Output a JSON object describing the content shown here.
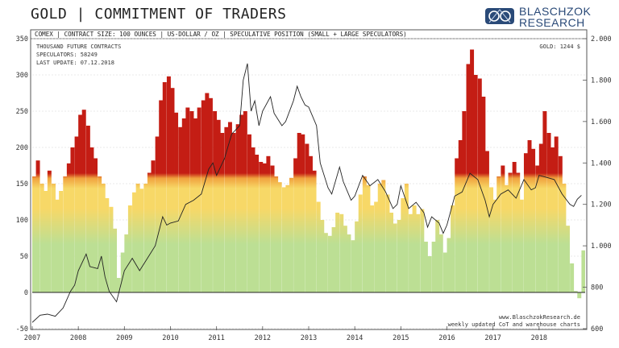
{
  "header": {
    "title": "GOLD | COMMITMENT OF TRADERS",
    "logo_line1": "BLASCHZOK",
    "logo_line2": "RESEARCH",
    "logo_icon": "lion-crest-icon"
  },
  "chart_data": {
    "type": "bar",
    "subtitle": "COMEX | CONTRACT SIZE: 100 OUNCES | US-DOLLAR / OZ | SPECULATIVE POSITION (SMALL + LARGE SPECULATORS)",
    "info_lines": [
      "THOUSAND  FUTURE  CONTRACTS",
      "SPECULATORS:  58249",
      "LAST UPDATE: 07.12.2018"
    ],
    "gold_label": "GOLD: 1244 $",
    "footer_lines": [
      "www.BlaschzokResearch.de",
      "weekly updated CoT and warehouse charts"
    ],
    "x_ticks": [
      "2007",
      "2008",
      "2009",
      "2010",
      "2011",
      "2012",
      "2013",
      "2014",
      "2015",
      "2016",
      "2017",
      "2018"
    ],
    "x_range": [
      2007.0,
      2019.0
    ],
    "y_left_ticks": [
      "350",
      "300",
      "250",
      "200",
      "150",
      "100",
      "50",
      "0",
      "-50"
    ],
    "y_left_range": [
      -50,
      350
    ],
    "y_right_ticks": [
      "2.000",
      "1.800",
      "1.600",
      "1.400",
      "1.200",
      "1.000",
      "800",
      "600"
    ],
    "y_right_range": [
      600,
      2000
    ],
    "grid": true,
    "color_zones": {
      "green": "#bcdf94",
      "yellow": "#f7d867",
      "orange": "#f0a23e",
      "red": "#c41d14"
    },
    "series": [
      {
        "kind": "bars",
        "points": [
          [
            2007.0,
            160
          ],
          [
            2007.08,
            182
          ],
          [
            2007.17,
            150
          ],
          [
            2007.25,
            140
          ],
          [
            2007.33,
            168
          ],
          [
            2007.42,
            150
          ],
          [
            2007.5,
            128
          ],
          [
            2007.58,
            140
          ],
          [
            2007.67,
            160
          ],
          [
            2007.75,
            178
          ],
          [
            2007.83,
            200
          ],
          [
            2007.92,
            215
          ],
          [
            2008.0,
            245
          ],
          [
            2008.08,
            252
          ],
          [
            2008.17,
            230
          ],
          [
            2008.25,
            200
          ],
          [
            2008.33,
            185
          ],
          [
            2008.42,
            160
          ],
          [
            2008.5,
            150
          ],
          [
            2008.58,
            130
          ],
          [
            2008.67,
            118
          ],
          [
            2008.75,
            88
          ],
          [
            2008.83,
            20
          ],
          [
            2008.92,
            55
          ],
          [
            2009.0,
            80
          ],
          [
            2009.08,
            120
          ],
          [
            2009.17,
            138
          ],
          [
            2009.25,
            150
          ],
          [
            2009.33,
            143
          ],
          [
            2009.42,
            150
          ],
          [
            2009.5,
            165
          ],
          [
            2009.58,
            182
          ],
          [
            2009.67,
            215
          ],
          [
            2009.75,
            265
          ],
          [
            2009.83,
            290
          ],
          [
            2009.92,
            298
          ],
          [
            2010.0,
            282
          ],
          [
            2010.08,
            248
          ],
          [
            2010.17,
            228
          ],
          [
            2010.25,
            240
          ],
          [
            2010.33,
            255
          ],
          [
            2010.42,
            250
          ],
          [
            2010.5,
            240
          ],
          [
            2010.58,
            255
          ],
          [
            2010.67,
            265
          ],
          [
            2010.75,
            275
          ],
          [
            2010.83,
            268
          ],
          [
            2010.92,
            250
          ],
          [
            2011.0,
            238
          ],
          [
            2011.08,
            220
          ],
          [
            2011.17,
            228
          ],
          [
            2011.25,
            235
          ],
          [
            2011.33,
            220
          ],
          [
            2011.42,
            232
          ],
          [
            2011.5,
            245
          ],
          [
            2011.58,
            250
          ],
          [
            2011.67,
            218
          ],
          [
            2011.75,
            200
          ],
          [
            2011.83,
            190
          ],
          [
            2011.92,
            180
          ],
          [
            2012.0,
            178
          ],
          [
            2012.08,
            188
          ],
          [
            2012.17,
            175
          ],
          [
            2012.25,
            160
          ],
          [
            2012.33,
            152
          ],
          [
            2012.42,
            145
          ],
          [
            2012.5,
            148
          ],
          [
            2012.58,
            158
          ],
          [
            2012.67,
            185
          ],
          [
            2012.75,
            220
          ],
          [
            2012.83,
            218
          ],
          [
            2012.92,
            205
          ],
          [
            2013.0,
            188
          ],
          [
            2013.08,
            168
          ],
          [
            2013.17,
            125
          ],
          [
            2013.25,
            100
          ],
          [
            2013.33,
            82
          ],
          [
            2013.42,
            78
          ],
          [
            2013.5,
            90
          ],
          [
            2013.58,
            110
          ],
          [
            2013.67,
            108
          ],
          [
            2013.75,
            92
          ],
          [
            2013.83,
            80
          ],
          [
            2013.92,
            72
          ],
          [
            2014.0,
            98
          ],
          [
            2014.08,
            135
          ],
          [
            2014.17,
            160
          ],
          [
            2014.25,
            148
          ],
          [
            2014.33,
            120
          ],
          [
            2014.42,
            125
          ],
          [
            2014.5,
            150
          ],
          [
            2014.58,
            155
          ],
          [
            2014.67,
            135
          ],
          [
            2014.75,
            110
          ],
          [
            2014.83,
            95
          ],
          [
            2014.92,
            100
          ],
          [
            2015.0,
            130
          ],
          [
            2015.08,
            150
          ],
          [
            2015.17,
            108
          ],
          [
            2015.25,
            120
          ],
          [
            2015.33,
            108
          ],
          [
            2015.42,
            115
          ],
          [
            2015.5,
            70
          ],
          [
            2015.58,
            50
          ],
          [
            2015.67,
            70
          ],
          [
            2015.75,
            100
          ],
          [
            2015.83,
            80
          ],
          [
            2015.92,
            55
          ],
          [
            2016.0,
            75
          ],
          [
            2016.08,
            120
          ],
          [
            2016.17,
            185
          ],
          [
            2016.25,
            210
          ],
          [
            2016.33,
            250
          ],
          [
            2016.42,
            315
          ],
          [
            2016.5,
            335
          ],
          [
            2016.58,
            300
          ],
          [
            2016.67,
            295
          ],
          [
            2016.75,
            270
          ],
          [
            2016.83,
            195
          ],
          [
            2016.92,
            145
          ],
          [
            2017.0,
            128
          ],
          [
            2017.08,
            160
          ],
          [
            2017.17,
            175
          ],
          [
            2017.25,
            148
          ],
          [
            2017.33,
            165
          ],
          [
            2017.42,
            180
          ],
          [
            2017.5,
            165
          ],
          [
            2017.58,
            128
          ],
          [
            2017.67,
            192
          ],
          [
            2017.75,
            210
          ],
          [
            2017.83,
            198
          ],
          [
            2017.92,
            175
          ],
          [
            2018.0,
            205
          ],
          [
            2018.08,
            250
          ],
          [
            2018.17,
            220
          ],
          [
            2018.25,
            200
          ],
          [
            2018.33,
            215
          ],
          [
            2018.42,
            188
          ],
          [
            2018.5,
            150
          ],
          [
            2018.58,
            92
          ],
          [
            2018.67,
            40
          ],
          [
            2018.75,
            2
          ],
          [
            2018.83,
            -8
          ],
          [
            2018.92,
            58
          ]
        ]
      },
      {
        "kind": "line",
        "name": "GOLD",
        "points": [
          [
            2007.0,
            630
          ],
          [
            2007.17,
            665
          ],
          [
            2007.33,
            670
          ],
          [
            2007.5,
            660
          ],
          [
            2007.67,
            700
          ],
          [
            2007.83,
            780
          ],
          [
            2007.92,
            810
          ],
          [
            2008.0,
            880
          ],
          [
            2008.17,
            960
          ],
          [
            2008.25,
            900
          ],
          [
            2008.42,
            890
          ],
          [
            2008.5,
            950
          ],
          [
            2008.58,
            850
          ],
          [
            2008.67,
            780
          ],
          [
            2008.83,
            730
          ],
          [
            2008.92,
            810
          ],
          [
            2009.0,
            880
          ],
          [
            2009.17,
            940
          ],
          [
            2009.33,
            880
          ],
          [
            2009.5,
            940
          ],
          [
            2009.67,
            1000
          ],
          [
            2009.83,
            1140
          ],
          [
            2009.92,
            1100
          ],
          [
            2010.0,
            1110
          ],
          [
            2010.17,
            1120
          ],
          [
            2010.33,
            1200
          ],
          [
            2010.5,
            1220
          ],
          [
            2010.67,
            1250
          ],
          [
            2010.83,
            1370
          ],
          [
            2010.92,
            1400
          ],
          [
            2011.0,
            1340
          ],
          [
            2011.17,
            1420
          ],
          [
            2011.33,
            1540
          ],
          [
            2011.5,
            1580
          ],
          [
            2011.58,
            1800
          ],
          [
            2011.67,
            1880
          ],
          [
            2011.75,
            1650
          ],
          [
            2011.83,
            1700
          ],
          [
            2011.92,
            1580
          ],
          [
            2012.0,
            1650
          ],
          [
            2012.17,
            1720
          ],
          [
            2012.25,
            1640
          ],
          [
            2012.42,
            1580
          ],
          [
            2012.5,
            1600
          ],
          [
            2012.67,
            1700
          ],
          [
            2012.75,
            1770
          ],
          [
            2012.83,
            1720
          ],
          [
            2012.92,
            1680
          ],
          [
            2013.0,
            1670
          ],
          [
            2013.17,
            1580
          ],
          [
            2013.25,
            1400
          ],
          [
            2013.42,
            1280
          ],
          [
            2013.5,
            1250
          ],
          [
            2013.67,
            1380
          ],
          [
            2013.75,
            1310
          ],
          [
            2013.92,
            1220
          ],
          [
            2014.0,
            1240
          ],
          [
            2014.17,
            1340
          ],
          [
            2014.33,
            1290
          ],
          [
            2014.5,
            1320
          ],
          [
            2014.67,
            1260
          ],
          [
            2014.83,
            1180
          ],
          [
            2014.92,
            1200
          ],
          [
            2015.0,
            1290
          ],
          [
            2015.17,
            1180
          ],
          [
            2015.33,
            1210
          ],
          [
            2015.5,
            1160
          ],
          [
            2015.58,
            1090
          ],
          [
            2015.67,
            1140
          ],
          [
            2015.83,
            1110
          ],
          [
            2015.92,
            1060
          ],
          [
            2016.0,
            1100
          ],
          [
            2016.17,
            1240
          ],
          [
            2016.33,
            1260
          ],
          [
            2016.5,
            1350
          ],
          [
            2016.67,
            1320
          ],
          [
            2016.83,
            1220
          ],
          [
            2016.92,
            1140
          ],
          [
            2017.0,
            1200
          ],
          [
            2017.17,
            1250
          ],
          [
            2017.33,
            1270
          ],
          [
            2017.5,
            1230
          ],
          [
            2017.67,
            1320
          ],
          [
            2017.83,
            1270
          ],
          [
            2017.92,
            1280
          ],
          [
            2018.0,
            1340
          ],
          [
            2018.17,
            1330
          ],
          [
            2018.33,
            1320
          ],
          [
            2018.5,
            1250
          ],
          [
            2018.67,
            1200
          ],
          [
            2018.75,
            1190
          ],
          [
            2018.83,
            1225
          ],
          [
            2018.92,
            1244
          ]
        ]
      }
    ]
  }
}
